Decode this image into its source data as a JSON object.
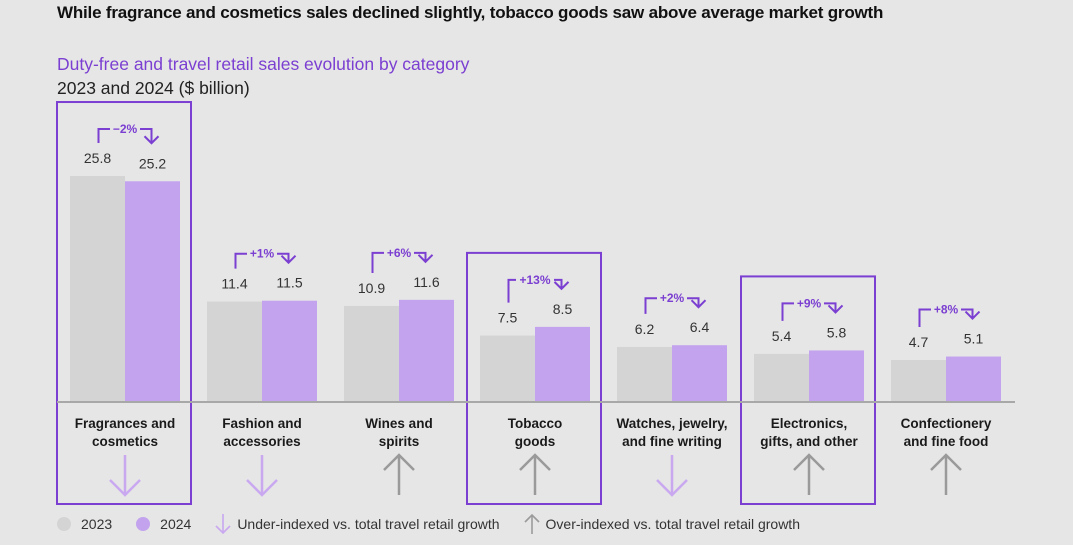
{
  "headline": "While fragrance and cosmetics sales declined slightly, tobacco goods saw above average market growth",
  "colors": {
    "y2023": "#d4d4d4",
    "y2024": "#c3a3ee",
    "accent": "#7b3fd1",
    "under_arrow": "#c9a8f0",
    "over_arrow": "#9a9a9a",
    "axis": "#a8a8a8"
  },
  "chart_data": {
    "type": "bar",
    "title": "Duty-free and travel retail sales evolution by category",
    "subtitle": "2023 and 2024 ($ billion)",
    "xlabel": "",
    "ylabel": "",
    "ylim": [
      0,
      26
    ],
    "grid": false,
    "categories": [
      "Fragrances and cosmetics",
      "Fashion and accessories",
      "Wines and spirits",
      "Tobacco goods",
      "Watches, jewelry, and fine writing",
      "Electronics, gifts, and other",
      "Confectionery and fine food"
    ],
    "category_lines": [
      [
        "Fragrances and",
        "cosmetics"
      ],
      [
        "Fashion and",
        "accessories"
      ],
      [
        "Wines and",
        "spirits"
      ],
      [
        "Tobacco",
        "goods"
      ],
      [
        "Watches, jewelry,",
        "and fine writing"
      ],
      [
        "Electronics,",
        "gifts, and other"
      ],
      [
        "Confectionery",
        "and fine food"
      ]
    ],
    "series": [
      {
        "name": "2023",
        "values": [
          25.8,
          11.4,
          10.9,
          7.5,
          6.2,
          5.4,
          4.7
        ]
      },
      {
        "name": "2024",
        "values": [
          25.2,
          11.5,
          11.6,
          8.5,
          6.4,
          5.8,
          5.1
        ]
      }
    ],
    "value_labels": {
      "2023": [
        "25.8",
        "11.4",
        "10.9",
        "7.5",
        "6.2",
        "5.4",
        "4.7"
      ],
      "2024": [
        "25.2",
        "11.5",
        "11.6",
        "8.5",
        "6.4",
        "5.8",
        "5.1"
      ]
    },
    "growth_labels": [
      "−2%",
      "+1%",
      "+6%",
      "+13%",
      "+2%",
      "+9%",
      "+8%"
    ],
    "index_vs_market": [
      "under",
      "under",
      "over",
      "over",
      "under",
      "over",
      "over"
    ],
    "highlighted": [
      true,
      false,
      false,
      true,
      false,
      true,
      false
    ],
    "legend": {
      "placement": "bottom-left",
      "entries": [
        {
          "label": "2023",
          "type": "dot",
          "color_key": "y2023"
        },
        {
          "label": "2024",
          "type": "dot",
          "color_key": "y2024"
        },
        {
          "label": "Under-indexed vs. total travel retail growth",
          "type": "down-arrow"
        },
        {
          "label": "Over-indexed vs. total travel retail growth",
          "type": "up-arrow"
        }
      ]
    }
  }
}
